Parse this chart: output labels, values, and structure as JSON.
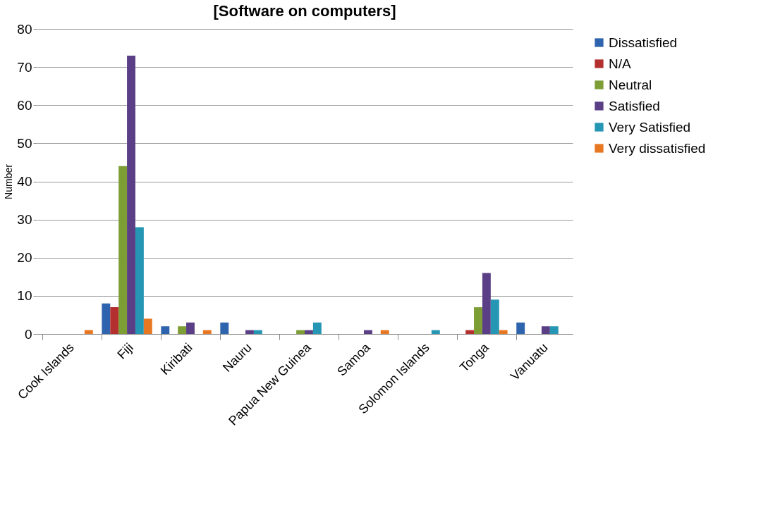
{
  "chart_data": {
    "type": "bar",
    "title": "[Software on computers]",
    "ylabel": "Number",
    "categories": [
      "Cook Islands",
      "Fiji",
      "Kiribati",
      "Nauru",
      "Papua New Guinea",
      "Samoa",
      "Solomon Islands",
      "Tonga",
      "Vanuatu"
    ],
    "series": [
      {
        "name": "Dissatisfied",
        "color": "#2e64ad",
        "values": [
          null,
          8,
          2,
          3,
          null,
          null,
          null,
          null,
          3
        ]
      },
      {
        "name": "N/A",
        "color": "#b3302f",
        "values": [
          null,
          7,
          null,
          null,
          null,
          null,
          null,
          1,
          null
        ]
      },
      {
        "name": "Neutral",
        "color": "#7d9d35",
        "values": [
          null,
          44,
          2,
          null,
          1,
          null,
          null,
          7,
          null
        ]
      },
      {
        "name": "Satisfied",
        "color": "#5b3f86",
        "values": [
          null,
          73,
          3,
          1,
          1,
          1,
          null,
          16,
          2
        ]
      },
      {
        "name": "Very  Satisfied",
        "color": "#2596b3",
        "values": [
          null,
          28,
          null,
          1,
          3,
          null,
          1,
          9,
          2
        ]
      },
      {
        "name": "Very dissatisfied",
        "color": "#e87722",
        "values": [
          1,
          4,
          1,
          null,
          null,
          1,
          null,
          1,
          null
        ]
      }
    ],
    "ylim": [
      0,
      80
    ],
    "yticks": [
      0,
      10,
      20,
      30,
      40,
      50,
      60,
      70,
      80
    ],
    "grid": "y",
    "legend": "right"
  }
}
